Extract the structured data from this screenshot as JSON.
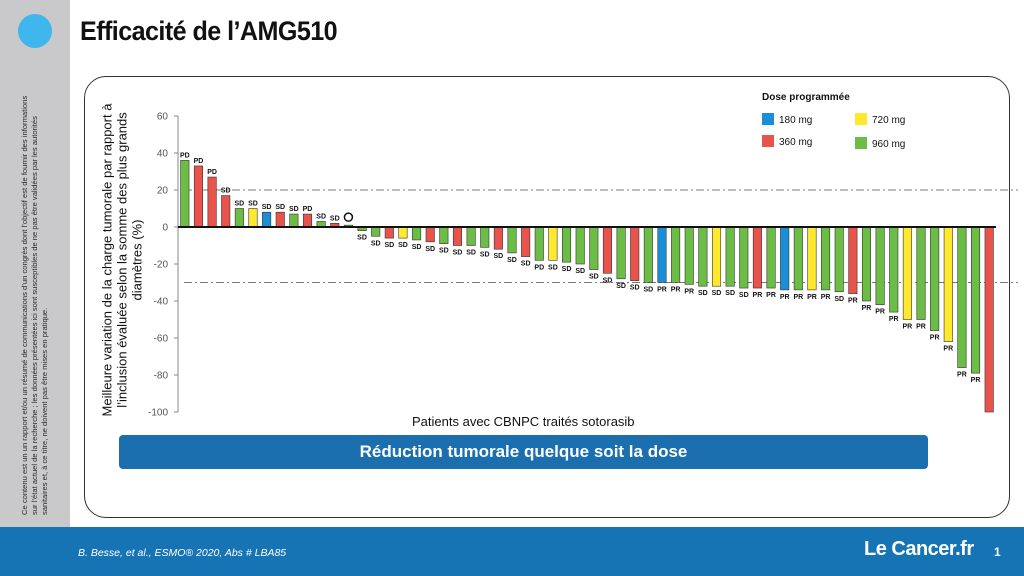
{
  "slide": {
    "title": "Efficacité de l’AMG510",
    "disclaimer": "Ce contenu est un un rapport et/ou un résumé de communications d’un congrès dont l’objectif est de fournir des informations sur l’état actuel de la recherche ; les données présentées ici sont susceptibles de ne pas être validées par les autorités sanitaires et, à ce titre, ne doivent pas être mises en pratique.",
    "banner": "Réduction tumorale quelque soit la dose",
    "citation": "B. Besse, et al., ESMO® 2020, Abs # LBA85",
    "logo": "Le Cancer.fr",
    "page_number": "1",
    "colors": {
      "accent": "#3fb7ec",
      "banner": "#1b6fae",
      "footer": "#1674b5"
    }
  },
  "chart_data": {
    "type": "bar",
    "title": "",
    "xlabel": "Patients avec CBNPC traités sotorasib",
    "ylabel": "Meilleure variation de la charge tumorale par rapport à l’inclusion évaluée selon la somme des plus grands diamètres (%)",
    "ylim": [
      -100,
      60
    ],
    "yticks": [
      60,
      40,
      20,
      0,
      -20,
      -40,
      -60,
      -80,
      -100
    ],
    "reference_lines": [
      20,
      -30
    ],
    "legend": {
      "title": "Dose programmée",
      "placement": "top-right",
      "entries": [
        {
          "name": "180 mg",
          "color": "#1a8fd6"
        },
        {
          "name": "720 mg",
          "color": "#ffe92f"
        },
        {
          "name": "360 mg",
          "color": "#e8534b"
        },
        {
          "name": "960 mg",
          "color": "#6cbd45"
        }
      ]
    },
    "bars": [
      {
        "value": 36,
        "dose": "960 mg",
        "response": "PD"
      },
      {
        "value": 33,
        "dose": "360 mg",
        "response": "PD"
      },
      {
        "value": 27,
        "dose": "360 mg",
        "response": "PD"
      },
      {
        "value": 17,
        "dose": "360 mg",
        "response": "SD"
      },
      {
        "value": 10,
        "dose": "960 mg",
        "response": "SD"
      },
      {
        "value": 10,
        "dose": "720 mg",
        "response": "SD"
      },
      {
        "value": 8,
        "dose": "180 mg",
        "response": "SD"
      },
      {
        "value": 8,
        "dose": "360 mg",
        "response": "SD"
      },
      {
        "value": 7,
        "dose": "960 mg",
        "response": "SD"
      },
      {
        "value": 7,
        "dose": "360 mg",
        "response": "PD"
      },
      {
        "value": 3,
        "dose": "960 mg",
        "response": "SD"
      },
      {
        "value": 2,
        "dose": "360 mg",
        "response": "SD"
      },
      {
        "value": 1,
        "dose": "960 mg",
        "response": ""
      },
      {
        "value": -2,
        "dose": "960 mg",
        "response": "SD"
      },
      {
        "value": -5,
        "dose": "960 mg",
        "response": "SD"
      },
      {
        "value": -6,
        "dose": "360 mg",
        "response": "SD"
      },
      {
        "value": -6,
        "dose": "720 mg",
        "response": "SD"
      },
      {
        "value": -7,
        "dose": "960 mg",
        "response": "SD"
      },
      {
        "value": -8,
        "dose": "360 mg",
        "response": "SD"
      },
      {
        "value": -9,
        "dose": "960 mg",
        "response": "SD"
      },
      {
        "value": -10,
        "dose": "360 mg",
        "response": "SD"
      },
      {
        "value": -10,
        "dose": "960 mg",
        "response": "SD"
      },
      {
        "value": -11,
        "dose": "960 mg",
        "response": "SD"
      },
      {
        "value": -12,
        "dose": "360 mg",
        "response": "SD"
      },
      {
        "value": -14,
        "dose": "960 mg",
        "response": "SD"
      },
      {
        "value": -16,
        "dose": "360 mg",
        "response": "SD"
      },
      {
        "value": -18,
        "dose": "960 mg",
        "response": "PD"
      },
      {
        "value": -18,
        "dose": "720 mg",
        "response": "SD"
      },
      {
        "value": -19,
        "dose": "960 mg",
        "response": "SD"
      },
      {
        "value": -20,
        "dose": "960 mg",
        "response": "SD"
      },
      {
        "value": -23,
        "dose": "960 mg",
        "response": "SD"
      },
      {
        "value": -25,
        "dose": "360 mg",
        "response": "SD"
      },
      {
        "value": -28,
        "dose": "960 mg",
        "response": "SD"
      },
      {
        "value": -29,
        "dose": "360 mg",
        "response": "SD"
      },
      {
        "value": -30,
        "dose": "960 mg",
        "response": "SD"
      },
      {
        "value": -30,
        "dose": "180 mg",
        "response": "PR"
      },
      {
        "value": -30,
        "dose": "960 mg",
        "response": "PR"
      },
      {
        "value": -31,
        "dose": "960 mg",
        "response": "PR"
      },
      {
        "value": -32,
        "dose": "960 mg",
        "response": "SD"
      },
      {
        "value": -32,
        "dose": "720 mg",
        "response": "SD"
      },
      {
        "value": -32,
        "dose": "960 mg",
        "response": "SD"
      },
      {
        "value": -33,
        "dose": "960 mg",
        "response": "SD"
      },
      {
        "value": -33,
        "dose": "360 mg",
        "response": "PR"
      },
      {
        "value": -33,
        "dose": "960 mg",
        "response": "PR"
      },
      {
        "value": -34,
        "dose": "180 mg",
        "response": "PR"
      },
      {
        "value": -34,
        "dose": "960 mg",
        "response": "PR"
      },
      {
        "value": -34,
        "dose": "720 mg",
        "response": "PR"
      },
      {
        "value": -34,
        "dose": "960 mg",
        "response": "PR"
      },
      {
        "value": -35,
        "dose": "960 mg",
        "response": "SD"
      },
      {
        "value": -36,
        "dose": "360 mg",
        "response": "PR"
      },
      {
        "value": -40,
        "dose": "960 mg",
        "response": "PR"
      },
      {
        "value": -42,
        "dose": "960 mg",
        "response": "PR"
      },
      {
        "value": -46,
        "dose": "960 mg",
        "response": "PR"
      },
      {
        "value": -50,
        "dose": "720 mg",
        "response": "PR"
      },
      {
        "value": -50,
        "dose": "960 mg",
        "response": "PR"
      },
      {
        "value": -56,
        "dose": "960 mg",
        "response": "PR"
      },
      {
        "value": -62,
        "dose": "720 mg",
        "response": "PR"
      },
      {
        "value": -76,
        "dose": "960 mg",
        "response": "PR"
      },
      {
        "value": -79,
        "dose": "960 mg",
        "response": "PR"
      },
      {
        "value": -100,
        "dose": "360 mg",
        "response": ""
      }
    ]
  }
}
